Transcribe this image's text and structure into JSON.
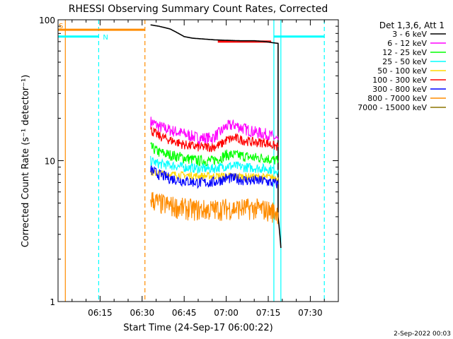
{
  "chart_data": {
    "type": "line",
    "title": "RHESSI Observing Summary Count Rates, Corrected",
    "xlabel": "Start Time (24-Sep-17 06:00:22)",
    "ylabel": "Corrected Count Rate (s⁻¹ detector⁻¹)",
    "yscale": "log",
    "ylim": [
      1,
      100
    ],
    "xlim_minutes": [
      0,
      100
    ],
    "x_ticks": [
      "06:15",
      "06:30",
      "06:45",
      "07:00",
      "07:15",
      "07:30"
    ],
    "x_tick_minutes": [
      15,
      30,
      45,
      60,
      75,
      90
    ],
    "y_ticks": [
      "1",
      "10",
      "100"
    ],
    "y_tick_values": [
      1,
      10,
      100
    ],
    "legend_title": "Det 1,3,6, Att 1",
    "legend_position": "right",
    "series": [
      {
        "name": "3 - 6 keV",
        "color": "#000000",
        "x": [
          33,
          36,
          38,
          40,
          42,
          45,
          48,
          52,
          56,
          60,
          65,
          70,
          74,
          76,
          78.5,
          78.5,
          79.5
        ],
        "values": [
          92,
          90,
          88,
          86,
          82,
          76,
          74,
          73,
          72,
          71.5,
          71,
          71,
          70,
          69,
          68,
          4,
          2.4
        ]
      },
      {
        "name": "6 - 12 keV",
        "color": "#ff00ff",
        "x": [
          33,
          36,
          40,
          45,
          50,
          55,
          58,
          60,
          63,
          66,
          70,
          74,
          76,
          78.5
        ],
        "values": [
          19,
          17.5,
          16.5,
          15.5,
          14.5,
          14.5,
          16,
          17.5,
          18,
          17,
          16,
          15.5,
          15,
          14
        ]
      },
      {
        "name": "12 - 25 keV",
        "color": "#00ff00",
        "x": [
          33,
          36,
          40,
          45,
          50,
          55,
          58,
          60,
          63,
          66,
          70,
          74,
          76,
          78.5
        ],
        "values": [
          12.5,
          11.5,
          11,
          10.5,
          10,
          10,
          10.5,
          11,
          11,
          10.8,
          10.5,
          10.5,
          10.2,
          10
        ]
      },
      {
        "name": "25 - 50 keV",
        "color": "#00ffff",
        "x": [
          33,
          36,
          40,
          45,
          50,
          55,
          58,
          60,
          63,
          66,
          70,
          74,
          76,
          78.5
        ],
        "values": [
          10,
          9.5,
          9.3,
          9,
          8.8,
          8.8,
          9,
          9.2,
          9.2,
          9,
          8.9,
          8.8,
          8.7,
          8.6
        ]
      },
      {
        "name": "50 - 100 keV",
        "color": "#ffd700",
        "x": [
          33,
          40,
          50,
          60,
          70,
          78.5
        ],
        "values": [
          8.2,
          8,
          7.8,
          7.8,
          7.7,
          7.6
        ]
      },
      {
        "name": "100 - 300 keV",
        "color": "#ff0000",
        "x": [
          33,
          36,
          40,
          45,
          50,
          55,
          58,
          60,
          63,
          66,
          70,
          74,
          76,
          78.5
        ],
        "values": [
          16.5,
          15,
          14,
          13,
          12.5,
          12.5,
          13,
          14,
          14.5,
          14,
          13.5,
          13.5,
          13,
          12.5
        ]
      },
      {
        "name": "300 - 800 keV",
        "color": "#0000ff",
        "x": [
          33,
          36,
          40,
          45,
          50,
          55,
          58,
          60,
          63,
          66,
          70,
          74,
          76,
          78.5
        ],
        "values": [
          8.6,
          8,
          7.5,
          7.2,
          7,
          7,
          7.3,
          7.5,
          7.5,
          7.3,
          7.2,
          7.2,
          7,
          6.8
        ]
      },
      {
        "name": "800 - 7000 keV",
        "color": "#ff8c00",
        "x": [
          33,
          36,
          40,
          45,
          50,
          55,
          60,
          65,
          70,
          74,
          76,
          78.5
        ],
        "values": [
          5.4,
          5,
          4.8,
          4.6,
          4.5,
          4.5,
          4.6,
          4.6,
          4.6,
          4.5,
          4.4,
          4.3
        ]
      },
      {
        "name": "7000 - 15000 keV",
        "color": "#8b7500",
        "x": [],
        "values": []
      }
    ],
    "flags": [
      {
        "label": "S",
        "color": "#ff8c00",
        "x_start": 0,
        "x_end": 31,
        "value": 85
      },
      {
        "label": "N",
        "color": "#00ffff",
        "x_start": 0,
        "x_end": 14.5,
        "value": 76
      },
      {
        "label": "",
        "color": "#00ffff",
        "x_start": 77,
        "x_end": 95,
        "value": 76
      },
      {
        "label": "",
        "color": "#ff0000",
        "x_start": 57,
        "x_end": 76,
        "value": 70
      }
    ],
    "vlines": [
      {
        "x": 2.6,
        "color": "#ff8c00",
        "style": "solid"
      },
      {
        "x": 14.5,
        "color": "#00ffff",
        "style": "dashed"
      },
      {
        "x": 31,
        "color": "#ff8c00",
        "style": "dashed"
      },
      {
        "x": 77,
        "color": "#00ffff",
        "style": "solid"
      },
      {
        "x": 95,
        "color": "#00ffff",
        "style": "dashed"
      },
      {
        "x": 79.5,
        "color": "#00ffff",
        "style": "solid"
      }
    ]
  },
  "footer": {
    "date": "2-Sep-2022 00:03"
  }
}
